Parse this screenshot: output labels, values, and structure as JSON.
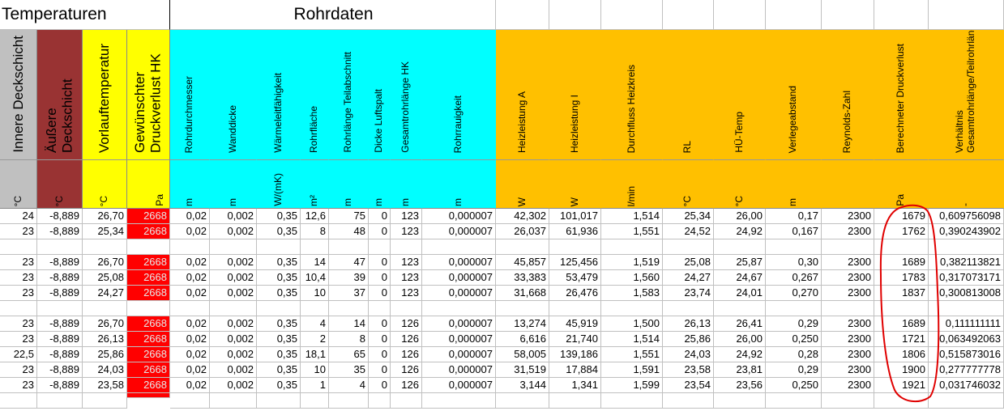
{
  "section_titles": {
    "temperaturen": "Temperaturen",
    "rohrdaten": "Rohrdaten"
  },
  "colors": {
    "gray": "#c0c0c0",
    "brown": "#993333",
    "yellow": "#ffff00",
    "cyan": "#00ffff",
    "orange": "#ffc000",
    "red": "#ff0000",
    "circle": "#e00000",
    "gridline": "#c0c0c0"
  },
  "columns": [
    {
      "header": "Innere Deckschicht",
      "unit": "°C",
      "color": "gray",
      "size": "big"
    },
    {
      "header": "Äußere Deckschicht",
      "unit": "°C",
      "color": "brown",
      "size": "big"
    },
    {
      "header": "Vorlauftemperatur",
      "unit": "°C",
      "color": "yellow",
      "size": "big"
    },
    {
      "header": "Gewünschter Druckverlust HK",
      "unit": "Pa",
      "color": "yellow",
      "size": "big"
    },
    {
      "header": "Rohrdurchmesser",
      "unit": "m",
      "color": "cyan",
      "size": "small"
    },
    {
      "header": "Wanddicke",
      "unit": "m",
      "color": "cyan",
      "size": "small"
    },
    {
      "header": "Wärmeleitfähigkeit",
      "unit": "W/(mK)",
      "color": "cyan",
      "size": "small"
    },
    {
      "header": "Rohrfläche",
      "unit": "m²",
      "color": "cyan",
      "size": "small"
    },
    {
      "header": "Rohrlänge Teilabschnitt",
      "unit": "m",
      "color": "cyan",
      "size": "small"
    },
    {
      "header": "Dicke Luftspalt",
      "unit": "m",
      "color": "cyan",
      "size": "small"
    },
    {
      "header": "Gesamtrohrlänge HK",
      "unit": "m",
      "color": "cyan",
      "size": "small"
    },
    {
      "header": "Rohrrauigkeit",
      "unit": "m",
      "color": "cyan",
      "size": "small"
    },
    {
      "header": "Heizleistung A",
      "unit": "W",
      "color": "orange",
      "size": "small"
    },
    {
      "header": "Heizleistung I",
      "unit": "W",
      "color": "orange",
      "size": "small"
    },
    {
      "header": "Durchfluss Heizkreis",
      "unit": "l/min",
      "color": "orange",
      "size": "small"
    },
    {
      "header": "RL",
      "unit": "°C",
      "color": "orange",
      "size": "small"
    },
    {
      "header": "HÜ-Temp",
      "unit": "°C",
      "color": "orange",
      "size": "small"
    },
    {
      "header": "Verlegeabstand",
      "unit": "m",
      "color": "orange",
      "size": "small"
    },
    {
      "header": "Reynolds-Zahl",
      "unit": "",
      "color": "orange",
      "size": "small"
    },
    {
      "header": "Berechneter Druckverlust",
      "unit": "Pa",
      "color": "orange",
      "size": "small"
    },
    {
      "header": "Verhältnis Gesamtrohrlänge/Teilrohrlänge",
      "unit": "-",
      "color": "orange",
      "size": "small"
    }
  ],
  "rows": [
    [
      "24",
      "-8,889",
      "26,70",
      "2668",
      "0,02",
      "0,002",
      "0,35",
      "12,6",
      "75",
      "0",
      "123",
      "0,000007",
      "42,302",
      "101,017",
      "1,514",
      "25,34",
      "26,00",
      "0,17",
      "2300",
      "1679",
      "0,609756098"
    ],
    [
      "23",
      "-8,889",
      "25,34",
      "2668",
      "0,02",
      "0,002",
      "0,35",
      "8",
      "48",
      "0",
      "123",
      "0,000007",
      "26,037",
      "61,936",
      "1,551",
      "24,52",
      "24,92",
      "0,167",
      "2300",
      "1762",
      "0,390243902"
    ],
    [],
    [
      "23",
      "-8,889",
      "26,70",
      "2668",
      "0,02",
      "0,002",
      "0,35",
      "14",
      "47",
      "0",
      "123",
      "0,000007",
      "45,857",
      "125,456",
      "1,519",
      "25,08",
      "25,87",
      "0,30",
      "2300",
      "1689",
      "0,382113821"
    ],
    [
      "23",
      "-8,889",
      "25,08",
      "2668",
      "0,02",
      "0,002",
      "0,35",
      "10,4",
      "39",
      "0",
      "123",
      "0,000007",
      "33,383",
      "53,479",
      "1,560",
      "24,27",
      "24,67",
      "0,267",
      "2300",
      "1783",
      "0,317073171"
    ],
    [
      "23",
      "-8,889",
      "24,27",
      "2668",
      "0,02",
      "0,002",
      "0,35",
      "10",
      "37",
      "0",
      "123",
      "0,000007",
      "31,668",
      "26,476",
      "1,583",
      "23,74",
      "24,01",
      "0,270",
      "2300",
      "1837",
      "0,300813008"
    ],
    [],
    [
      "23",
      "-8,889",
      "26,70",
      "2668",
      "0,02",
      "0,002",
      "0,35",
      "4",
      "14",
      "0",
      "126",
      "0,000007",
      "13,274",
      "45,919",
      "1,500",
      "26,13",
      "26,41",
      "0,29",
      "2300",
      "1689",
      "0,111111111"
    ],
    [
      "23",
      "-8,889",
      "26,13",
      "2668",
      "0,02",
      "0,002",
      "0,35",
      "2",
      "8",
      "0",
      "126",
      "0,000007",
      "6,616",
      "21,740",
      "1,514",
      "25,86",
      "26,00",
      "0,250",
      "2300",
      "1721",
      "0,063492063"
    ],
    [
      "22,5",
      "-8,889",
      "25,86",
      "2668",
      "0,02",
      "0,002",
      "0,35",
      "18,1",
      "65",
      "0",
      "126",
      "0,000007",
      "58,005",
      "139,186",
      "1,551",
      "24,03",
      "24,92",
      "0,28",
      "2300",
      "1806",
      "0,515873016"
    ],
    [
      "23",
      "-8,889",
      "24,03",
      "2668",
      "0,02",
      "0,002",
      "0,35",
      "10",
      "35",
      "0",
      "126",
      "0,000007",
      "31,519",
      "17,884",
      "1,591",
      "23,58",
      "23,81",
      "0,29",
      "2300",
      "1900",
      "0,277777778"
    ],
    [
      "23",
      "-8,889",
      "23,58",
      "2668",
      "0,02",
      "0,002",
      "0,35",
      "1",
      "4",
      "0",
      "126",
      "0,000007",
      "3,144",
      "1,341",
      "1,599",
      "23,54",
      "23,56",
      "0,250",
      "2300",
      "1921",
      "0,031746032"
    ],
    []
  ],
  "highlight_column": 3
}
